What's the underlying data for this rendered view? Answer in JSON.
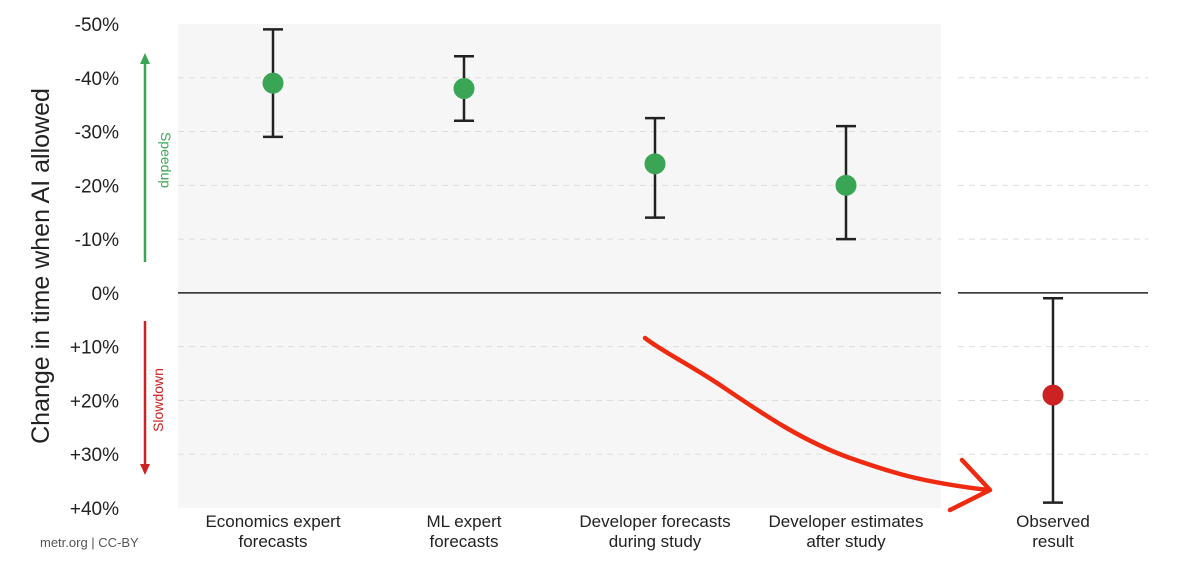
{
  "chart_data": {
    "type": "scatter",
    "title": "",
    "xlabel": "",
    "ylabel": "Change in time when AI allowed",
    "ylim": [
      -50,
      40
    ],
    "yticks": [
      -50,
      -40,
      -30,
      -20,
      -10,
      0,
      10,
      20,
      30,
      40
    ],
    "ytick_labels": [
      "-50%",
      "-40%",
      "-30%",
      "-20%",
      "-10%",
      "0%",
      "+10%",
      "+20%",
      "+30%",
      "+40%"
    ],
    "grid": true,
    "categories": [
      [
        "Economics expert",
        "forecasts"
      ],
      [
        "ML expert",
        "forecasts"
      ],
      [
        "Developer forecasts",
        "during study"
      ],
      [
        "Developer estimates",
        "after study"
      ],
      [
        "Observed",
        "result"
      ]
    ],
    "points": [
      {
        "estimate": -39,
        "low": -49,
        "high": -29,
        "color": "#3aa655",
        "group": "forecast"
      },
      {
        "estimate": -38,
        "low": -44,
        "high": -32,
        "color": "#3aa655",
        "group": "forecast"
      },
      {
        "estimate": -24,
        "low": -32.5,
        "high": -14,
        "color": "#3aa655",
        "group": "forecast"
      },
      {
        "estimate": -20,
        "low": -31,
        "high": -10,
        "color": "#3aa655",
        "group": "forecast"
      },
      {
        "estimate": 19,
        "low": 1,
        "high": 39,
        "color": "#cc2222",
        "group": "observed"
      }
    ],
    "annotations": {
      "speedup_label": "Speedup",
      "slowdown_label": "Slowdown",
      "speedup_color": "#3aa655",
      "slowdown_color": "#cc2222",
      "arrow_color": "#ee2a10"
    }
  },
  "footer": {
    "credit": "metr.org  |  CC-BY"
  }
}
